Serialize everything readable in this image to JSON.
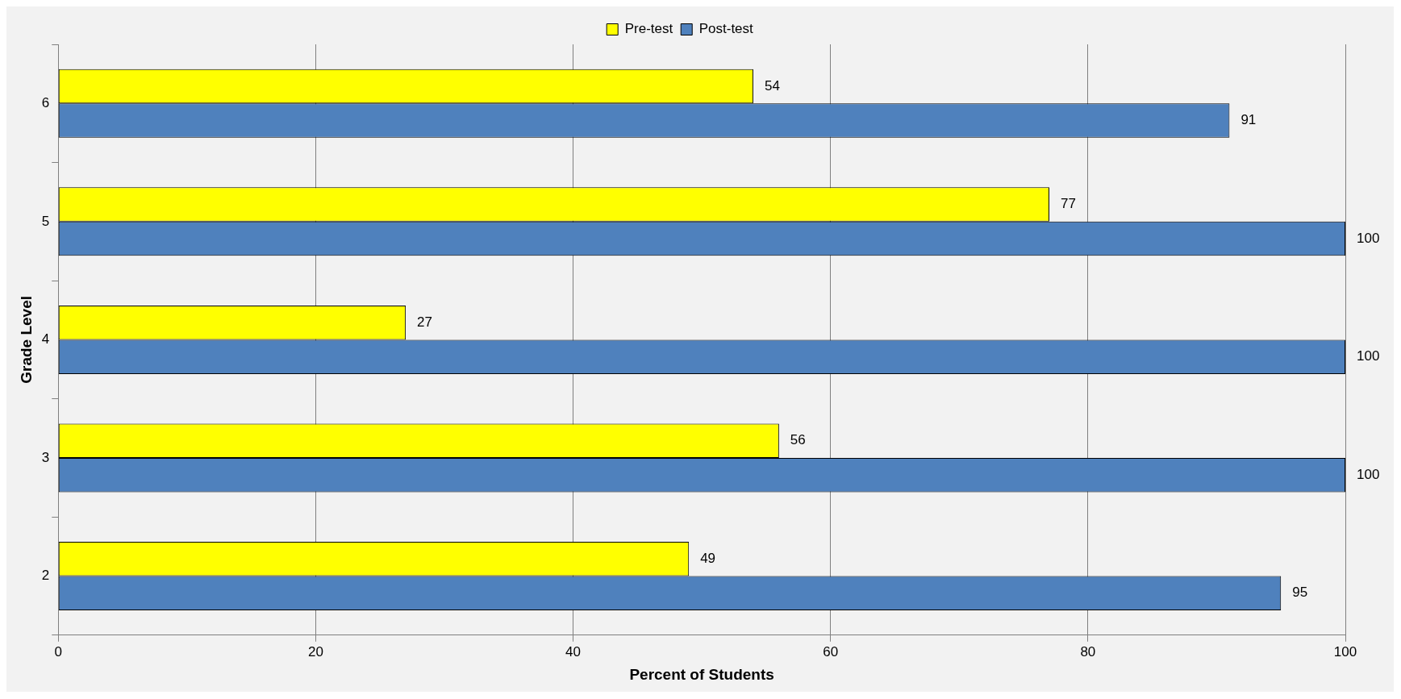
{
  "chart_data": {
    "type": "bar",
    "orientation": "horizontal",
    "xlabel": "Percent of Students",
    "ylabel": "Grade Level",
    "categories": [
      "6",
      "5",
      "4",
      "3",
      "2"
    ],
    "series": [
      {
        "name": "Pre-test",
        "color": "#ffff00",
        "values": [
          54,
          77,
          27,
          56,
          49
        ]
      },
      {
        "name": "Post-test",
        "color": "#4f81bd",
        "values": [
          91,
          100,
          100,
          100,
          95
        ]
      }
    ],
    "xlim": [
      0,
      100
    ],
    "xticks": [
      0,
      20,
      40,
      60,
      80,
      100
    ],
    "grid": "x",
    "legend": "top",
    "data_labels": true
  }
}
